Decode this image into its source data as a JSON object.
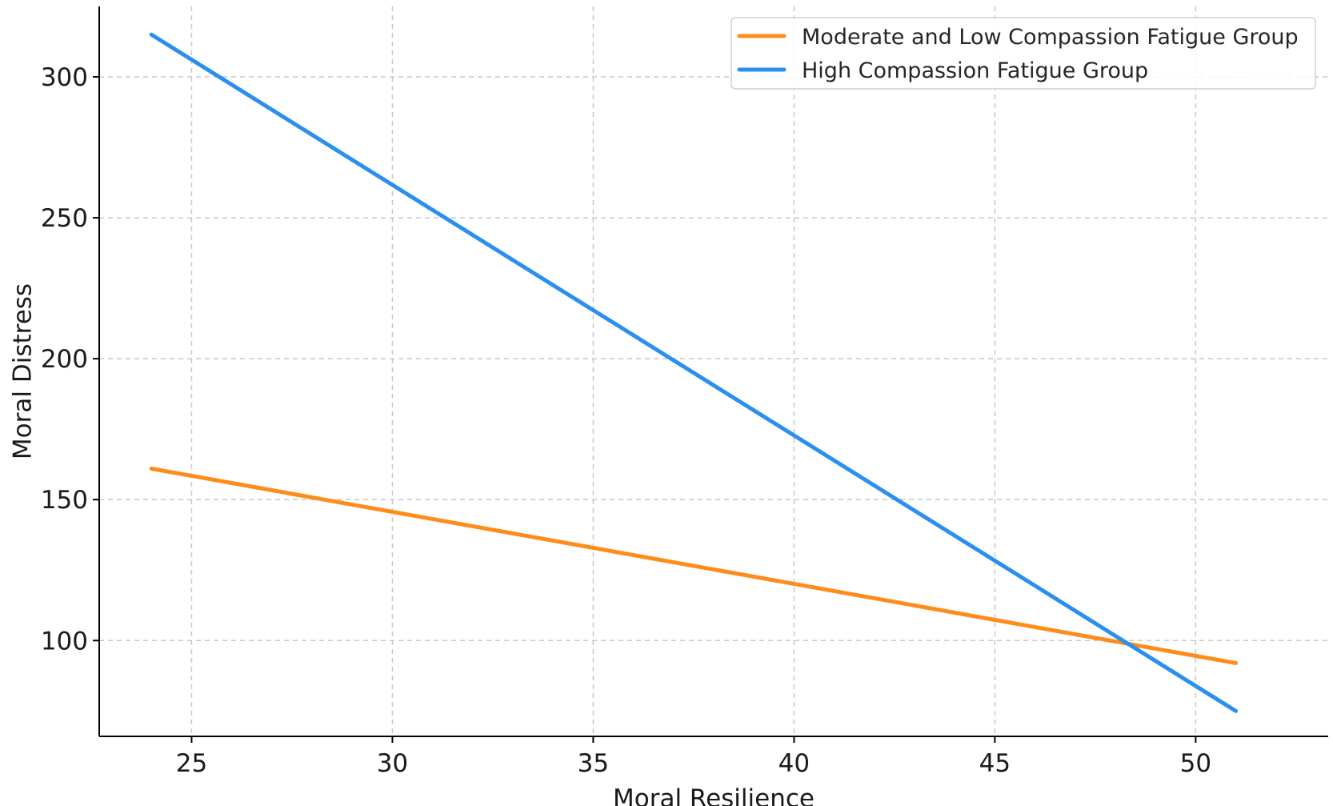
{
  "chart_data": {
    "type": "line",
    "title": "",
    "xlabel": "Moral Resilience",
    "ylabel": "Moral Distress",
    "xlim": [
      22.7,
      53.3
    ],
    "ylim": [
      66,
      325
    ],
    "xticks": [
      25,
      30,
      35,
      40,
      45,
      50
    ],
    "yticks": [
      100,
      150,
      200,
      250,
      300
    ],
    "grid": true,
    "legend_position": "top-right",
    "series": [
      {
        "name": "Moderate and Low Compassion Fatigue Group",
        "color": "#ff8c1a",
        "x": [
          24,
          51
        ],
        "y": [
          161,
          92
        ]
      },
      {
        "name": "High Compassion Fatigue Group",
        "color": "#2b8ff0",
        "x": [
          24,
          51
        ],
        "y": [
          315,
          75
        ]
      }
    ]
  }
}
